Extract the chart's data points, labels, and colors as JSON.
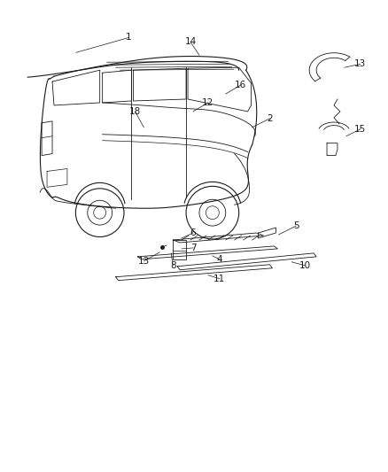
{
  "bg_color": "#ffffff",
  "line_color": "#1a1a1a",
  "label_color": "#1a1a1a",
  "fig_width": 4.38,
  "fig_height": 5.33,
  "dpi": 100,
  "label_fontsize": 7.5
}
